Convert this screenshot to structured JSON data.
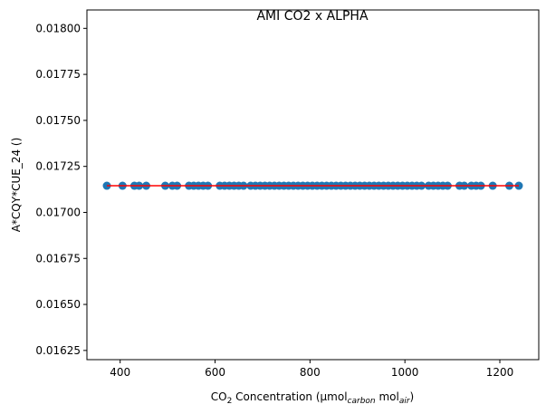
{
  "chart_data": {
    "type": "scatter",
    "title": "AMI CO2 x ALPHA",
    "xlabel": {
      "prefix": "CO",
      "prefix_sub": "2",
      "middle": " Concentration (μmol",
      "sub1": "carbon",
      "middle2": " mol",
      "sub2": "air",
      "suffix": ")"
    },
    "ylabel": "A*CQY*CUE_24 ()",
    "xlim": [
      330,
      1282
    ],
    "ylim": [
      0.0162,
      0.0181
    ],
    "xticks": [
      400,
      600,
      800,
      1000,
      1200
    ],
    "yticks": [
      0.01625,
      0.0165,
      0.01675,
      0.017,
      0.01725,
      0.0175,
      0.01775,
      0.018
    ],
    "ytick_labels": [
      "0.01625",
      "0.01650",
      "0.01675",
      "0.01700",
      "0.01725",
      "0.01750",
      "0.01775",
      "0.01800"
    ],
    "grid": false,
    "point_color": "#1f77b4",
    "fit_line_color": "#ff0000",
    "y_value": 0.017145,
    "fit_line": {
      "x": [
        372,
        1240
      ],
      "y": [
        0.017145,
        0.017145
      ]
    },
    "x": [
      372,
      405,
      430,
      440,
      455,
      495,
      510,
      520,
      545,
      555,
      565,
      575,
      585,
      610,
      620,
      630,
      640,
      650,
      660,
      675,
      685,
      695,
      705,
      715,
      725,
      735,
      745,
      755,
      765,
      775,
      785,
      795,
      805,
      815,
      825,
      835,
      845,
      855,
      865,
      875,
      885,
      895,
      905,
      915,
      925,
      935,
      945,
      955,
      965,
      975,
      985,
      995,
      1005,
      1015,
      1025,
      1035,
      1050,
      1060,
      1070,
      1080,
      1090,
      1115,
      1125,
      1140,
      1150,
      1160,
      1185,
      1220,
      1240
    ]
  }
}
